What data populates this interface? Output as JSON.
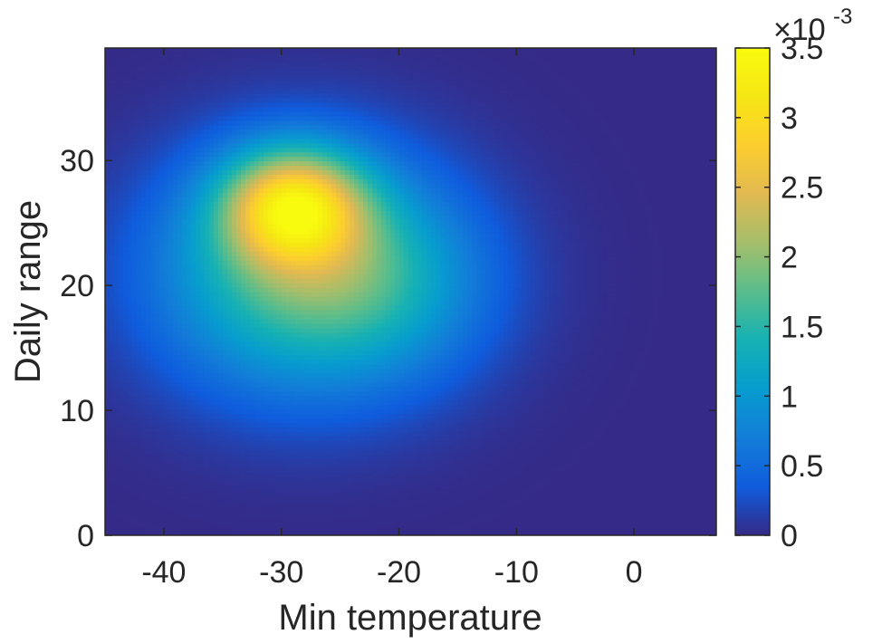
{
  "chart_data": {
    "type": "heatmap",
    "title": "",
    "xlabel": "Min temperature",
    "ylabel": "Daily range",
    "xlim": [
      -45,
      7
    ],
    "ylim": [
      0,
      39
    ],
    "xticks": [
      -40,
      -30,
      -20,
      -10,
      0
    ],
    "xtick_labels": [
      "-40",
      "-30",
      "-20",
      "-10",
      "0"
    ],
    "yticks": [
      0,
      10,
      20,
      30
    ],
    "ytick_labels": [
      "0",
      "10",
      "20",
      "30"
    ],
    "grid": false,
    "colorbar": {
      "lim": [
        0,
        0.0035
      ],
      "ticks": [
        0,
        0.0005,
        0.001,
        0.0015,
        0.002,
        0.0025,
        0.003,
        0.0035
      ],
      "tick_labels": [
        "0",
        "0.5",
        "1",
        "1.5",
        "2",
        "2.5",
        "3",
        "3.5"
      ],
      "exponent_label": "×10",
      "exponent": "-3",
      "colormap": "parula"
    },
    "density_components": [
      {
        "mx": -29,
        "my": 26.5,
        "sx": 4.2,
        "sy": 3.2,
        "amp": 0.0023
      },
      {
        "mx": -28,
        "my": 21,
        "sx": 8.5,
        "sy": 6.5,
        "amp": 0.0018
      },
      {
        "mx": -20,
        "my": 20,
        "sx": 6,
        "sy": 5,
        "amp": 0.0004
      }
    ]
  }
}
